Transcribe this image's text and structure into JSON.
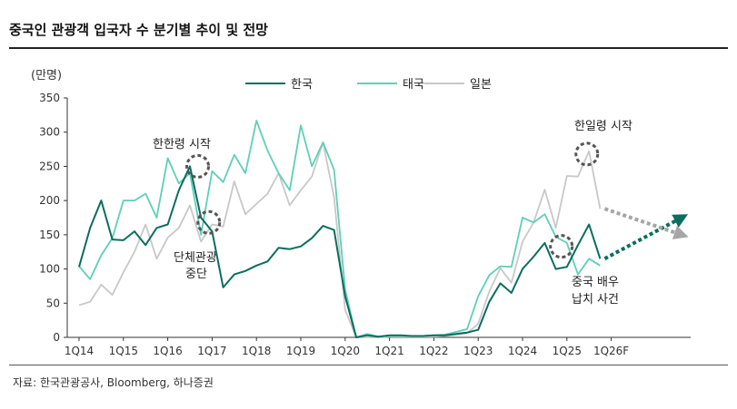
{
  "title": "중국인 관광객 입국자 수 분기별 추이 및 전망",
  "unit": "(만명)",
  "source": "자료: 한국관광공사, Bloomberg, 하나증권",
  "colors": {
    "korea": "#0b6e5f",
    "thailand": "#5ecfb8",
    "japan": "#c8c8c8",
    "forecast_korea": "#0b6e5f",
    "forecast_japan": "#a6a6a6",
    "marker": "#555555"
  },
  "annotations": {
    "thaad": "한한령 시작",
    "group_stop_1": "단체관광",
    "group_stop_2": "중단",
    "japan_ban": "한일령 시작",
    "actor_1": "중국 배우",
    "actor_2": "납치 사건"
  },
  "chart_data": {
    "type": "line",
    "title": "중국인 관광객 입국자 수 분기별 추이 및 전망",
    "ylabel": "(만명)",
    "ylim": [
      0,
      350
    ],
    "yticks": [
      0,
      50,
      100,
      150,
      200,
      250,
      300,
      350
    ],
    "xtick_labels": [
      "1Q14",
      "1Q15",
      "1Q16",
      "1Q17",
      "1Q18",
      "1Q19",
      "1Q20",
      "1Q21",
      "1Q22",
      "1Q23",
      "1Q24",
      "1Q25",
      "1Q26F"
    ],
    "legend": [
      "한국",
      "태국",
      "일본"
    ],
    "legend_position": "top-center",
    "grid": false,
    "series": [
      {
        "name": "한국",
        "values": [
          103,
          160,
          200,
          143,
          142,
          155,
          135,
          160,
          165,
          215,
          250,
          175,
          155,
          73,
          92,
          97,
          105,
          111,
          131,
          129,
          133,
          145,
          163,
          157,
          60,
          0,
          3,
          1,
          3,
          3,
          2,
          2,
          3,
          3,
          5,
          7,
          11,
          52,
          79,
          65,
          100,
          118,
          138,
          100,
          103,
          135,
          165,
          115
        ]
      },
      {
        "name": "태국",
        "values": [
          104,
          85,
          120,
          145,
          200,
          200,
          210,
          175,
          262,
          225,
          240,
          150,
          243,
          227,
          267,
          240,
          317,
          273,
          240,
          215,
          310,
          250,
          285,
          245,
          70,
          0,
          5,
          1,
          2,
          2,
          2,
          2,
          3,
          4,
          8,
          12,
          60,
          91,
          104,
          103,
          175,
          168,
          180,
          147,
          138,
          92,
          115,
          105
        ]
      },
      {
        "name": "일본",
        "values": [
          47,
          52,
          77,
          62,
          95,
          125,
          165,
          115,
          146,
          160,
          193,
          140,
          165,
          162,
          228,
          180,
          195,
          210,
          240,
          193,
          215,
          235,
          285,
          205,
          40,
          0,
          0,
          0,
          1,
          1,
          1,
          1,
          1,
          2,
          4,
          6,
          20,
          67,
          101,
          80,
          140,
          168,
          216,
          160,
          236,
          235,
          272,
          188
        ]
      }
    ],
    "forecast": [
      {
        "name": "한국",
        "from": 115,
        "to": 175
      },
      {
        "name": "일본",
        "from": 188,
        "to": 150
      }
    ]
  }
}
